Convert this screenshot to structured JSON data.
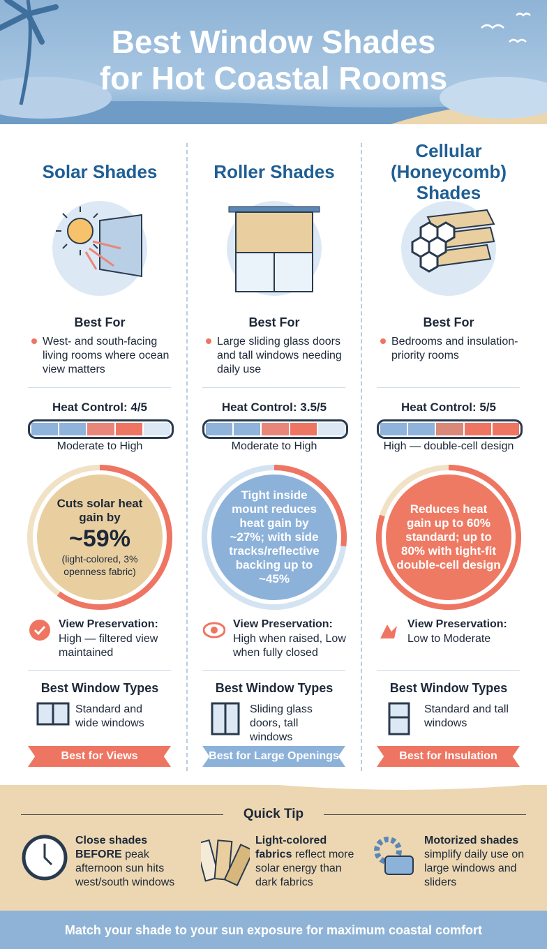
{
  "header": {
    "title_lines": [
      "Best Window Shades",
      "for Hot Coastal Rooms"
    ]
  },
  "columns": [
    {
      "name": "Solar Shades",
      "best_for_heading": "Best For",
      "best_for": "West- and south-facing living rooms where ocean view matters",
      "heat_control": "Heat Control: 4/5",
      "heat_level": "Moderate to High",
      "circle": [
        "Cuts solar heat gain by",
        "~59%",
        "(light-colored, 3% openness fabric)"
      ],
      "view_heading": "View Preservation:",
      "view_text": "High — filtered view maintained",
      "window_heading": "Best Window Types",
      "window_text": "Standard and wide windows",
      "badge": "Best for Views"
    },
    {
      "name": "Roller Shades",
      "best_for_heading": "Best For",
      "best_for": "Large sliding glass doors and tall windows needing daily use",
      "heat_control": "Heat Control: 3.5/5",
      "heat_level": "Moderate to High",
      "circle": [
        "Tight inside mount reduces heat gain by ~27%; with side tracks/reflective backing up to ~45%"
      ],
      "view_heading": "View Preservation:",
      "view_text": "High when raised, Low when fully closed",
      "window_heading": "Best Window Types",
      "window_text": "Sliding glass doors, tall windows",
      "badge": "Best for Large Openings"
    },
    {
      "name": "Cellular (Honeycomb) Shades",
      "best_for_heading": "Best For",
      "best_for": "Bedrooms and insulation-priority rooms",
      "heat_control": "Heat Control: 5/5",
      "heat_level": "High — double-cell design",
      "circle": [
        "Reduces heat gain up to 60% standard; up to 80% with tight-fit double-cell design"
      ],
      "view_heading": "View Preservation:",
      "view_text": "Low to Moderate",
      "window_heading": "Best Window Types",
      "window_text": "Standard and tall windows",
      "badge": "Best for Insulation"
    }
  ],
  "quick_tip": {
    "heading": "Quick Tip",
    "tips": [
      {
        "bold": "Close shades BEFORE",
        "text": "peak afternoon sun hits west/south windows"
      },
      {
        "bold": "Light-colored fabrics",
        "text": "reflect more solar energy than dark fabrics"
      },
      {
        "bold": "Motorized shades",
        "text": "simplify daily use on large windows and sliders"
      }
    ]
  },
  "footer": {
    "text": "Match your shade to your sun exposure for maximum coastal comfort"
  }
}
